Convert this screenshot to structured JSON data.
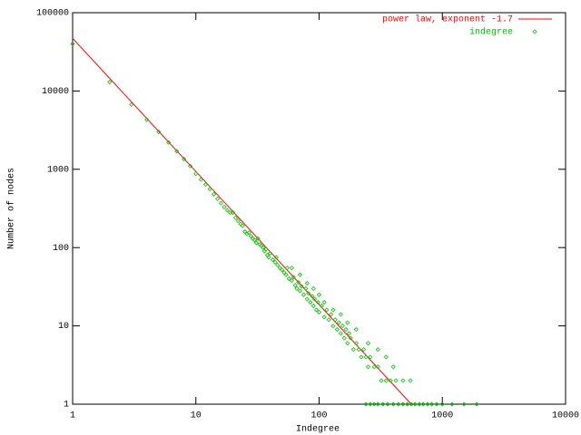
{
  "chart_data": {
    "type": "scatter",
    "xlabel": "Indegree",
    "ylabel": "Number of nodes",
    "xscale": "log",
    "yscale": "log",
    "xlim": [
      1,
      10000
    ],
    "ylim": [
      1,
      100000
    ],
    "xticks": [
      1,
      10,
      100,
      1000,
      10000
    ],
    "yticks": [
      1,
      10,
      100,
      1000,
      10000,
      100000
    ],
    "legend": "top-right",
    "series": [
      {
        "name": "power law, exponent -1.7",
        "color": "#ff0000",
        "style": "line",
        "x": [
          1,
          560
        ],
        "values": [
          47000,
          1
        ]
      },
      {
        "name": "indegree",
        "color": "#00c000",
        "style": "points",
        "x": [
          1,
          2,
          3,
          4,
          5,
          6,
          7,
          8,
          9,
          10,
          11,
          12,
          13,
          14,
          15,
          16,
          17,
          18,
          19,
          20,
          21,
          22,
          23,
          24,
          25,
          26,
          27,
          28,
          29,
          30,
          31,
          32,
          33,
          34,
          35,
          36,
          37,
          38,
          39,
          40,
          42,
          44,
          45,
          46,
          48,
          50,
          52,
          54,
          55,
          57,
          60,
          62,
          64,
          66,
          68,
          70,
          72,
          75,
          78,
          80,
          82,
          85,
          88,
          90,
          92,
          95,
          98,
          100,
          105,
          110,
          115,
          120,
          125,
          130,
          135,
          140,
          145,
          150,
          155,
          160,
          165,
          170,
          175,
          180,
          190,
          200,
          210,
          220,
          230,
          240,
          250,
          260,
          280,
          300,
          320,
          350,
          380,
          420,
          480,
          550,
          240,
          260,
          280,
          300,
          330,
          360,
          400,
          440,
          480,
          520,
          560,
          600,
          650,
          700,
          760,
          820,
          900,
          1000,
          1200,
          1500,
          1900,
          60,
          70,
          80,
          90,
          100,
          110,
          130,
          150,
          170,
          200,
          250,
          300,
          350,
          400
        ],
        "values": [
          40000,
          13000,
          6700,
          4300,
          3000,
          2200,
          1700,
          1350,
          1100,
          880,
          740,
          640,
          560,
          480,
          420,
          370,
          330,
          300,
          280,
          280,
          240,
          220,
          200,
          190,
          160,
          150,
          155,
          140,
          130,
          125,
          115,
          130,
          110,
          105,
          100,
          90,
          95,
          80,
          75,
          85,
          70,
          65,
          75,
          60,
          55,
          52,
          48,
          45,
          55,
          40,
          38,
          42,
          33,
          30,
          36,
          28,
          32,
          25,
          30,
          22,
          26,
          20,
          24,
          18,
          22,
          16,
          20,
          15,
          18,
          13,
          16,
          12,
          14,
          10,
          12,
          9,
          11,
          8,
          10,
          7,
          9,
          6,
          8,
          7,
          5,
          6,
          5,
          4,
          5,
          4,
          3,
          4,
          3,
          3,
          2,
          2,
          2,
          2,
          2,
          2,
          1,
          1,
          1,
          1,
          1,
          1,
          1,
          1,
          1,
          1,
          1,
          1,
          1,
          1,
          1,
          1,
          1,
          1,
          1,
          1,
          1,
          55,
          45,
          35,
          30,
          25,
          20,
          16,
          14,
          11,
          9,
          6,
          5,
          4,
          3
        ]
      }
    ]
  }
}
